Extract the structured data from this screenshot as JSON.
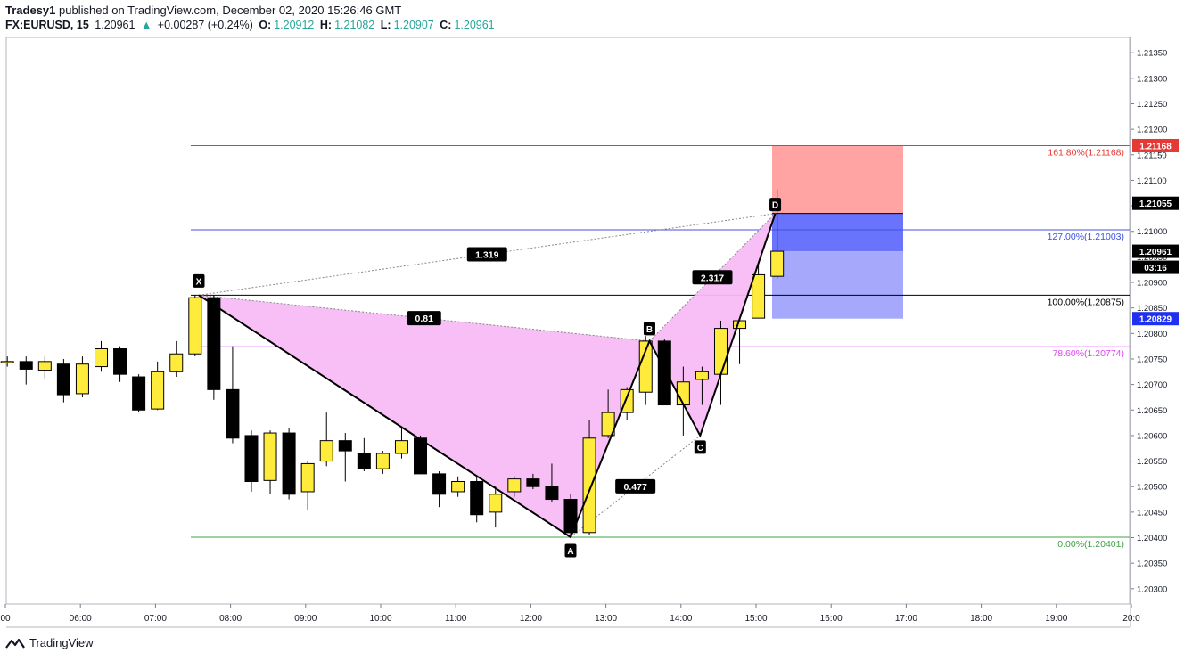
{
  "header": {
    "publisher": "Tradesy1",
    "published_text": "published on TradingView.com, December 02, 2020 15:26:46 GMT",
    "symbol": "FX:EURUSD, 15",
    "last": "1.20961",
    "change_arrow": "▲",
    "change": "+0.00287 (+0.24%)",
    "o_label": "O:",
    "o_value": "1.20912",
    "h_label": "H:",
    "h_value": "1.21082",
    "l_label": "L:",
    "l_value": "1.20907",
    "c_label": "C:",
    "c_value": "1.20961"
  },
  "brand": {
    "name": "TradingView",
    "icon": "tradingview-logo-icon"
  },
  "colors": {
    "bull": "#ffeb3b",
    "bear": "#000000",
    "pattern_fill": "#f8bbf5",
    "fib_1618": "#e53935",
    "fib_127": "#3f51e0",
    "fib_100": "#000000",
    "fib_786": "#e040fb",
    "fib_0": "#43a047",
    "stop_zone": "#ffa3a3",
    "target_zone_dark": "#6a73fb",
    "target_zone_light": "#a6a9fb"
  },
  "chart_data": {
    "type": "candlestick",
    "x_axis": {
      "ticks": [
        "00",
        "06:00",
        "07:00",
        "08:00",
        "09:00",
        "10:00",
        "11:00",
        "12:00",
        "13:00",
        "14:00",
        "15:00",
        "16:00",
        "17:00",
        "18:00",
        "19:00",
        "20:0"
      ]
    },
    "y_axis": {
      "range": [
        1.2027,
        1.2138
      ],
      "ticks": [
        "1.21350",
        "1.21300",
        "1.21250",
        "1.21200",
        "1.21150",
        "1.21100",
        "1.21050",
        "1.21000",
        "1.20950",
        "1.20900",
        "1.20850",
        "1.20800",
        "1.20750",
        "1.20700",
        "1.20650",
        "1.20600",
        "1.20550",
        "1.20500",
        "1.20450",
        "1.20400",
        "1.20350",
        "1.20300"
      ],
      "price_tags": [
        {
          "text": "1.21168",
          "value": 1.21168,
          "color": "#e53935"
        },
        {
          "text": "1.21055",
          "value": 1.21055,
          "color": "#000000"
        },
        {
          "text": "1.20961",
          "value": 1.20961,
          "color": "#000000"
        },
        {
          "text": "03:16",
          "value": 1.2094,
          "color": "#000000"
        },
        {
          "text": "1.20829",
          "value": 1.20829,
          "color": "#2030f0"
        }
      ]
    },
    "candles": [
      {
        "o": 1.20745,
        "h": 1.20755,
        "l": 1.20735,
        "c": 1.20745
      },
      {
        "o": 1.20745,
        "h": 1.20755,
        "l": 1.207,
        "c": 1.2073
      },
      {
        "o": 1.20728,
        "h": 1.20755,
        "l": 1.2071,
        "c": 1.20745
      },
      {
        "o": 1.2074,
        "h": 1.2075,
        "l": 1.20665,
        "c": 1.2068
      },
      {
        "o": 1.20682,
        "h": 1.20755,
        "l": 1.20675,
        "c": 1.2074
      },
      {
        "o": 1.20735,
        "h": 1.20785,
        "l": 1.20725,
        "c": 1.2077
      },
      {
        "o": 1.2077,
        "h": 1.20775,
        "l": 1.20705,
        "c": 1.2072
      },
      {
        "o": 1.20715,
        "h": 1.2072,
        "l": 1.20645,
        "c": 1.2065
      },
      {
        "o": 1.20652,
        "h": 1.20745,
        "l": 1.2065,
        "c": 1.20725
      },
      {
        "o": 1.20725,
        "h": 1.20785,
        "l": 1.20715,
        "c": 1.2076
      },
      {
        "o": 1.2076,
        "h": 1.20875,
        "l": 1.20755,
        "c": 1.2087
      },
      {
        "o": 1.2087,
        "h": 1.20875,
        "l": 1.2067,
        "c": 1.2069
      },
      {
        "o": 1.2069,
        "h": 1.20775,
        "l": 1.20585,
        "c": 1.20595
      },
      {
        "o": 1.206,
        "h": 1.2061,
        "l": 1.2049,
        "c": 1.2051
      },
      {
        "o": 1.20512,
        "h": 1.2061,
        "l": 1.20485,
        "c": 1.20605
      },
      {
        "o": 1.20605,
        "h": 1.20615,
        "l": 1.20475,
        "c": 1.20485
      },
      {
        "o": 1.2049,
        "h": 1.2055,
        "l": 1.20455,
        "c": 1.20545
      },
      {
        "o": 1.2055,
        "h": 1.20645,
        "l": 1.2054,
        "c": 1.2059
      },
      {
        "o": 1.2059,
        "h": 1.20605,
        "l": 1.2051,
        "c": 1.2057
      },
      {
        "o": 1.20565,
        "h": 1.20595,
        "l": 1.2053,
        "c": 1.20535
      },
      {
        "o": 1.20535,
        "h": 1.2057,
        "l": 1.20525,
        "c": 1.20565
      },
      {
        "o": 1.20565,
        "h": 1.20615,
        "l": 1.20555,
        "c": 1.2059
      },
      {
        "o": 1.20595,
        "h": 1.206,
        "l": 1.20525,
        "c": 1.20525
      },
      {
        "o": 1.20525,
        "h": 1.2053,
        "l": 1.2046,
        "c": 1.20485
      },
      {
        "o": 1.2049,
        "h": 1.2052,
        "l": 1.2048,
        "c": 1.2051
      },
      {
        "o": 1.2051,
        "h": 1.2052,
        "l": 1.2043,
        "c": 1.20445
      },
      {
        "o": 1.2045,
        "h": 1.205,
        "l": 1.2042,
        "c": 1.20485
      },
      {
        "o": 1.2049,
        "h": 1.2052,
        "l": 1.2048,
        "c": 1.20515
      },
      {
        "o": 1.20515,
        "h": 1.20525,
        "l": 1.20495,
        "c": 1.205
      },
      {
        "o": 1.205,
        "h": 1.20545,
        "l": 1.2047,
        "c": 1.20475
      },
      {
        "o": 1.20475,
        "h": 1.20485,
        "l": 1.20401,
        "c": 1.2041
      },
      {
        "o": 1.2041,
        "h": 1.2063,
        "l": 1.20405,
        "c": 1.20595
      },
      {
        "o": 1.206,
        "h": 1.2069,
        "l": 1.20595,
        "c": 1.20645
      },
      {
        "o": 1.20645,
        "h": 1.20695,
        "l": 1.2063,
        "c": 1.2069
      },
      {
        "o": 1.20685,
        "h": 1.20795,
        "l": 1.2066,
        "c": 1.20785
      },
      {
        "o": 1.20785,
        "h": 1.2079,
        "l": 1.2066,
        "c": 1.2066
      },
      {
        "o": 1.2066,
        "h": 1.20735,
        "l": 1.206,
        "c": 1.20705
      },
      {
        "o": 1.2071,
        "h": 1.20735,
        "l": 1.2066,
        "c": 1.20725
      },
      {
        "o": 1.2072,
        "h": 1.20825,
        "l": 1.2066,
        "c": 1.2081
      },
      {
        "o": 1.2081,
        "h": 1.2083,
        "l": 1.2074,
        "c": 1.20825
      },
      {
        "o": 1.2083,
        "h": 1.20935,
        "l": 1.2083,
        "c": 1.20915
      },
      {
        "o": 1.20912,
        "h": 1.21082,
        "l": 1.20907,
        "c": 1.20961
      }
    ],
    "fib_levels": [
      {
        "label": "161.80%(1.21168)",
        "value": 1.21168,
        "color": "#e53935"
      },
      {
        "label": "127.00%(1.21003)",
        "value": 1.21003,
        "color": "#3f51e0"
      },
      {
        "label": "100.00%(1.20875)",
        "value": 1.20875,
        "color": "#000000"
      },
      {
        "label": "78.60%(1.20774)",
        "value": 1.20774,
        "color": "#e040fb"
      },
      {
        "label": "0.00%(1.20401)",
        "value": 1.20401,
        "color": "#43a047"
      }
    ],
    "pattern_points": [
      {
        "name": "X",
        "bar": 10.2,
        "price": 1.20875
      },
      {
        "name": "A",
        "bar": 30,
        "price": 1.20401
      },
      {
        "name": "B",
        "bar": 34.2,
        "price": 1.20785
      },
      {
        "name": "C",
        "bar": 36.9,
        "price": 1.206
      },
      {
        "name": "D",
        "bar": 40.9,
        "price": 1.21035
      }
    ],
    "ratios": [
      {
        "text": "0.81"
      },
      {
        "text": "1.319"
      },
      {
        "text": "2.317"
      },
      {
        "text": "0.477"
      }
    ],
    "position_zones": [
      {
        "name": "stop",
        "top": 1.21168,
        "bottom": 1.21035,
        "color": "#ffa3a3"
      },
      {
        "name": "target-1",
        "top": 1.21035,
        "bottom": 1.20961,
        "color": "#6a73fb"
      },
      {
        "name": "target-2",
        "top": 1.20961,
        "bottom": 1.20829,
        "color": "#a6a9fb"
      }
    ]
  }
}
